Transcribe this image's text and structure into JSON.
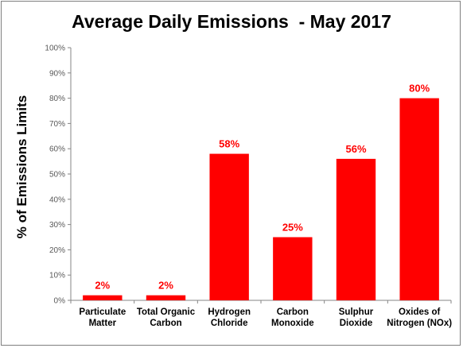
{
  "chart_data": {
    "type": "bar",
    "title": "Average Daily Emissions  - May 2017",
    "ylabel": "% of Emissions Limits",
    "xlabel": "",
    "ylim": [
      0,
      100
    ],
    "yticks": [
      "0%",
      "10%",
      "20%",
      "30%",
      "40%",
      "50%",
      "60%",
      "70%",
      "80%",
      "90%",
      "100%"
    ],
    "grid": false,
    "bar_color": "#ff0000",
    "label_color": "#ff0000",
    "categories": [
      "Particulate\nMatter",
      "Total Organic\nCarbon",
      "Hydrogen\nChloride",
      "Carbon\nMonoxide",
      "Sulphur\nDioxide",
      "Oxides of\nNitrogen (NOx)"
    ],
    "values": [
      2,
      2,
      58,
      25,
      56,
      80
    ],
    "data_labels": [
      "2%",
      "2%",
      "58%",
      "25%",
      "56%",
      "80%"
    ]
  }
}
